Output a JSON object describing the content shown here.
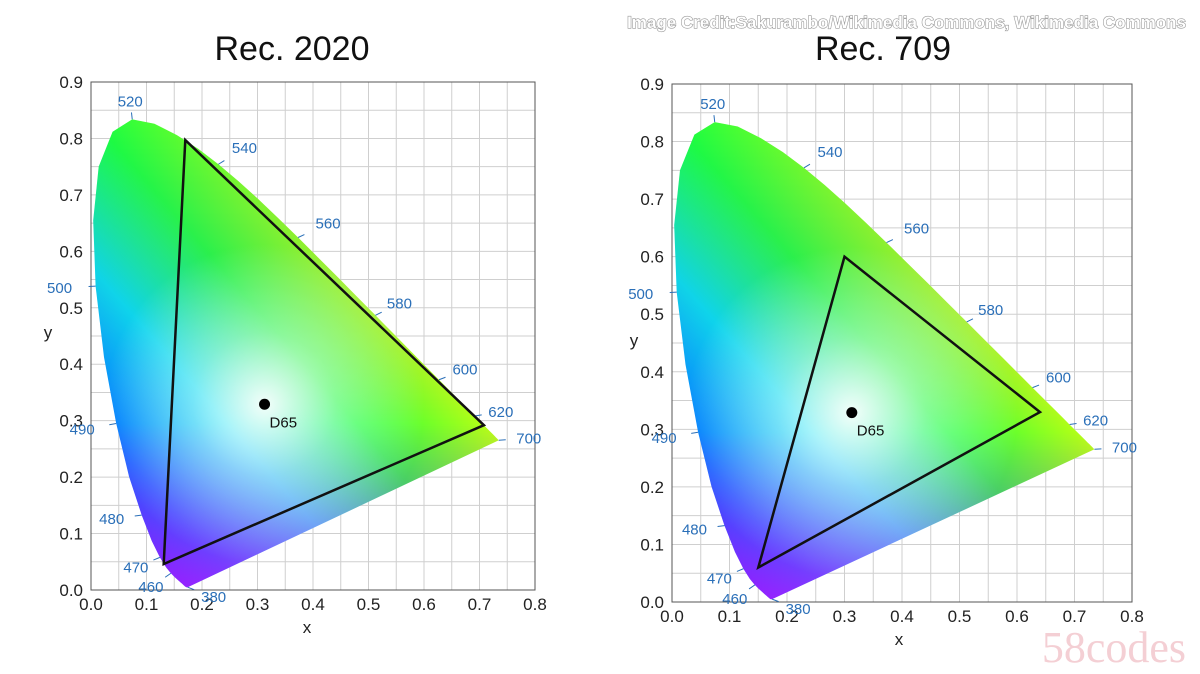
{
  "credit": "Image Credit:Sakurambo/Wikimedia Commons, Wikimedia Commons",
  "watermark": "58codes",
  "white_point_label": "D65",
  "colors": {
    "gamut_outline": "#111111",
    "wavelength_label": "#2a6fb8",
    "grid": "#cfcfcf"
  },
  "spectral_locus": [
    [
      0.1741,
      0.005
    ],
    [
      0.1738,
      0.0049
    ],
    [
      0.1736,
      0.0049
    ],
    [
      0.1733,
      0.0048
    ],
    [
      0.173,
      0.0048
    ],
    [
      0.1726,
      0.0048
    ],
    [
      0.1721,
      0.0048
    ],
    [
      0.1714,
      0.0051
    ],
    [
      0.1703,
      0.0058
    ],
    [
      0.1689,
      0.0069
    ],
    [
      0.1669,
      0.0086
    ],
    [
      0.1644,
      0.0109
    ],
    [
      0.1611,
      0.0138
    ],
    [
      0.1566,
      0.0177
    ],
    [
      0.151,
      0.0227
    ],
    [
      0.144,
      0.0297
    ],
    [
      0.1355,
      0.0399
    ],
    [
      0.1241,
      0.0578
    ],
    [
      0.1096,
      0.0868
    ],
    [
      0.0913,
      0.1327
    ],
    [
      0.0687,
      0.2007
    ],
    [
      0.0454,
      0.295
    ],
    [
      0.0235,
      0.4127
    ],
    [
      0.0082,
      0.5384
    ],
    [
      0.0039,
      0.6548
    ],
    [
      0.0139,
      0.7502
    ],
    [
      0.0389,
      0.812
    ],
    [
      0.0743,
      0.8338
    ],
    [
      0.1142,
      0.8262
    ],
    [
      0.1547,
      0.8059
    ],
    [
      0.1929,
      0.7816
    ],
    [
      0.2296,
      0.7543
    ],
    [
      0.2658,
      0.7243
    ],
    [
      0.3016,
      0.6923
    ],
    [
      0.3373,
      0.6589
    ],
    [
      0.3731,
      0.6245
    ],
    [
      0.4087,
      0.5896
    ],
    [
      0.4441,
      0.5547
    ],
    [
      0.4788,
      0.5202
    ],
    [
      0.5125,
      0.4866
    ],
    [
      0.5448,
      0.4544
    ],
    [
      0.5752,
      0.4242
    ],
    [
      0.6029,
      0.3965
    ],
    [
      0.627,
      0.3725
    ],
    [
      0.6482,
      0.3514
    ],
    [
      0.6658,
      0.334
    ],
    [
      0.6801,
      0.3197
    ],
    [
      0.6915,
      0.3083
    ],
    [
      0.7006,
      0.2993
    ],
    [
      0.7079,
      0.292
    ],
    [
      0.714,
      0.2859
    ],
    [
      0.719,
      0.2809
    ],
    [
      0.723,
      0.277
    ],
    [
      0.726,
      0.274
    ],
    [
      0.7283,
      0.2717
    ],
    [
      0.73,
      0.27
    ],
    [
      0.7311,
      0.2689
    ],
    [
      0.732,
      0.268
    ],
    [
      0.7327,
      0.2673
    ],
    [
      0.7334,
      0.2666
    ],
    [
      0.734,
      0.266
    ],
    [
      0.7344,
      0.2656
    ],
    [
      0.7346,
      0.2654
    ],
    [
      0.7347,
      0.2653
    ]
  ],
  "chart_data": [
    {
      "type": "scatter",
      "title": "Rec. 2020",
      "xlabel": "x",
      "ylabel": "y",
      "xlim": [
        0,
        0.8
      ],
      "ylim": [
        0,
        0.9
      ],
      "x_ticks": [
        "0.0",
        "0.1",
        "0.2",
        "0.3",
        "0.4",
        "0.5",
        "0.6",
        "0.7",
        "0.8"
      ],
      "y_ticks": [
        "0.0",
        "0.1",
        "0.2",
        "0.3",
        "0.4",
        "0.5",
        "0.6",
        "0.7",
        "0.8",
        "0.9"
      ],
      "grid": true,
      "gamut_triangle": [
        [
          0.708,
          0.292
        ],
        [
          0.17,
          0.797
        ],
        [
          0.131,
          0.046
        ]
      ],
      "white_point": {
        "label": "D65",
        "x": 0.3127,
        "y": 0.329
      },
      "wavelength_labels": [
        {
          "text": "380",
          "x": 0.1741,
          "y": 0.005
        },
        {
          "text": "460",
          "x": 0.144,
          "y": 0.0297
        },
        {
          "text": "470",
          "x": 0.1241,
          "y": 0.0578
        },
        {
          "text": "480",
          "x": 0.0913,
          "y": 0.1327
        },
        {
          "text": "490",
          "x": 0.0454,
          "y": 0.295
        },
        {
          "text": "500",
          "x": 0.0082,
          "y": 0.5384
        },
        {
          "text": "520",
          "x": 0.0743,
          "y": 0.8338
        },
        {
          "text": "540",
          "x": 0.2296,
          "y": 0.7543
        },
        {
          "text": "560",
          "x": 0.3731,
          "y": 0.6245
        },
        {
          "text": "580",
          "x": 0.5125,
          "y": 0.4866
        },
        {
          "text": "600",
          "x": 0.627,
          "y": 0.3725
        },
        {
          "text": "620",
          "x": 0.6915,
          "y": 0.3083
        },
        {
          "text": "700",
          "x": 0.7347,
          "y": 0.2653
        }
      ]
    },
    {
      "type": "scatter",
      "title": "Rec. 709",
      "xlabel": "x",
      "ylabel": "y",
      "xlim": [
        0,
        0.8
      ],
      "ylim": [
        0,
        0.9
      ],
      "x_ticks": [
        "0.0",
        "0.1",
        "0.2",
        "0.3",
        "0.4",
        "0.5",
        "0.6",
        "0.7",
        "0.8"
      ],
      "y_ticks": [
        "0.0",
        "0.1",
        "0.2",
        "0.3",
        "0.4",
        "0.5",
        "0.6",
        "0.7",
        "0.8",
        "0.9"
      ],
      "grid": true,
      "gamut_triangle": [
        [
          0.64,
          0.33
        ],
        [
          0.3,
          0.6
        ],
        [
          0.15,
          0.06
        ]
      ],
      "white_point": {
        "label": "D65",
        "x": 0.3127,
        "y": 0.329
      },
      "wavelength_labels": [
        {
          "text": "380",
          "x": 0.1741,
          "y": 0.005
        },
        {
          "text": "460",
          "x": 0.144,
          "y": 0.0297
        },
        {
          "text": "470",
          "x": 0.1241,
          "y": 0.0578
        },
        {
          "text": "480",
          "x": 0.0913,
          "y": 0.1327
        },
        {
          "text": "490",
          "x": 0.0454,
          "y": 0.295
        },
        {
          "text": "500",
          "x": 0.0082,
          "y": 0.5384
        },
        {
          "text": "520",
          "x": 0.0743,
          "y": 0.8338
        },
        {
          "text": "540",
          "x": 0.2296,
          "y": 0.7543
        },
        {
          "text": "560",
          "x": 0.3731,
          "y": 0.6245
        },
        {
          "text": "580",
          "x": 0.5125,
          "y": 0.4866
        },
        {
          "text": "600",
          "x": 0.627,
          "y": 0.3725
        },
        {
          "text": "620",
          "x": 0.6915,
          "y": 0.3083
        },
        {
          "text": "700",
          "x": 0.7347,
          "y": 0.2653
        }
      ]
    }
  ]
}
